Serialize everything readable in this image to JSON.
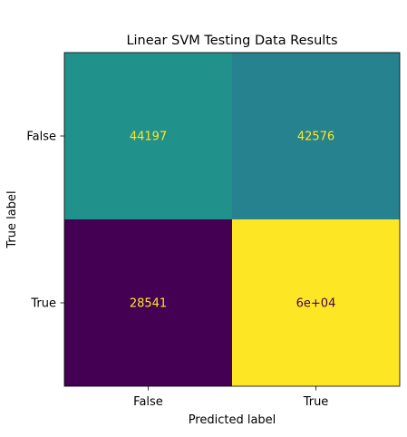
{
  "chart_data": {
    "type": "heatmap",
    "title": "Linear SVM Testing Data Results",
    "xlabel": "Predicted label",
    "ylabel": "True label",
    "x_categories": [
      "False",
      "True"
    ],
    "y_categories": [
      "False",
      "True"
    ],
    "values": [
      [
        44197,
        42576
      ],
      [
        28541,
        60000
      ]
    ],
    "cell_labels": [
      [
        "44197",
        "42576"
      ],
      [
        "28541",
        "6e+04"
      ]
    ],
    "colormap": "viridis",
    "colors": [
      [
        "#21918c",
        "#26828e"
      ],
      [
        "#440154",
        "#fde725"
      ]
    ],
    "label_colors": [
      [
        "#fde725",
        "#fde725"
      ],
      [
        "#fde725",
        "#440154"
      ]
    ],
    "colorbar": false,
    "grid": false
  }
}
